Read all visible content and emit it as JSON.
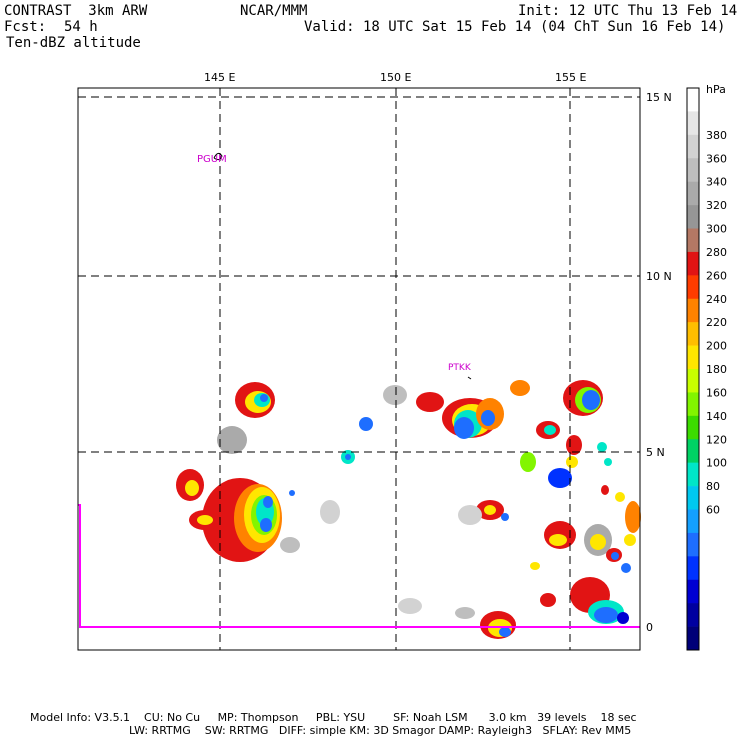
{
  "header": {
    "model_line": "CONTRAST  3km ARW",
    "center": "NCAR/MMM",
    "fcst_label": "Fcst:",
    "fcst_value": "54 h",
    "field": "Ten-dBZ altitude",
    "init": "Init: 12 UTC Thu 13 Feb 14",
    "valid": "Valid: 18 UTC Sat 15 Feb 14 (04 ChT Sun 16 Feb 14)"
  },
  "map": {
    "lon_labels": [
      "145 E",
      "150 E",
      "155 E"
    ],
    "lat_labels": [
      "15 N",
      "10 N",
      "5 N",
      "0"
    ],
    "stations": [
      {
        "id": "PGUM",
        "label": "PGUM"
      },
      {
        "id": "PTKK",
        "label": "PTKK"
      }
    ],
    "boundary_color": "#ff00ff",
    "station_color": "#cc00cc"
  },
  "colorbar": {
    "unit": "hPa",
    "labels": [
      "380",
      "360",
      "340",
      "320",
      "300",
      "280",
      "260",
      "240",
      "220",
      "200",
      "180",
      "160",
      "140",
      "120",
      "100",
      "80",
      "60"
    ],
    "colors": [
      "#ffffff",
      "#e6e6e6",
      "#d2d2d2",
      "#bebebe",
      "#aaaaaa",
      "#969696",
      "#b47864",
      "#e11414",
      "#ff3c00",
      "#ff8200",
      "#ffbe00",
      "#ffe600",
      "#c8ff00",
      "#82f500",
      "#3cdc00",
      "#00d264",
      "#00e6c8",
      "#00c8f0",
      "#14a0ff",
      "#1e6eff",
      "#0032ff",
      "#0000d2",
      "#0000a0",
      "#000078"
    ]
  },
  "footer": {
    "line1": "Model Info: V3.5.1    CU: No Cu     MP: Thompson     PBL: YSU        SF: Noah LSM      3.0 km   39 levels    18 sec",
    "line2": "LW: RRTMG    SW: RRTMG   DIFF: simple KM: 3D Smagor DAMP: Rayleigh3   SFLAY: Rev MM5"
  }
}
